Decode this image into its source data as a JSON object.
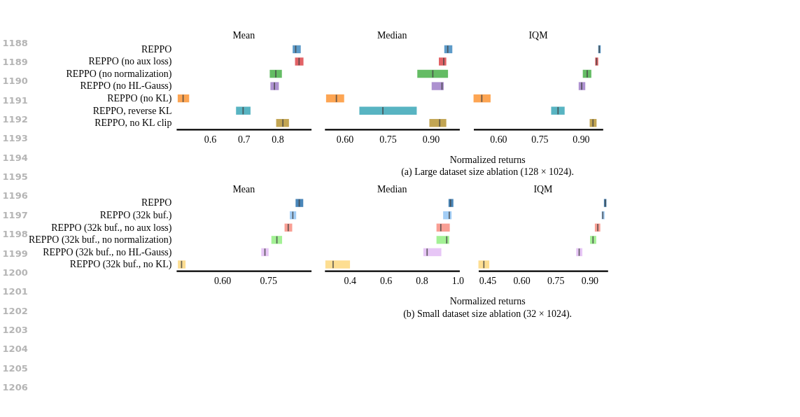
{
  "chart_data": [
    {
      "type": "box",
      "orientation": "horizontal",
      "title": "Mean",
      "categories": [
        "REPPO",
        "REPPO (no aux loss)",
        "REPPO (no normalization)",
        "REPPO (no HL-Gauss)",
        "REPPO (no KL)",
        "REPPO, reverse KL",
        "REPPO, no KL clip"
      ],
      "xlim": [
        0.5,
        0.9
      ],
      "xticks": [
        0.6,
        0.7,
        0.8
      ],
      "annotations": [
        "1188",
        "1189",
        "1190",
        "1191",
        "1192",
        "1193",
        "1194",
        "1195",
        "1196",
        "1197"
      ],
      "colors": [
        "#5496c6",
        "#e05a5e",
        "#5cb85c",
        "#a98bcd",
        "#fda04a",
        "#4fb0bf",
        "#bfa04a"
      ],
      "boxes": [
        {
          "low": 0.845,
          "q1": 0.845,
          "median": 0.854,
          "q3": 0.869,
          "high": 0.869
        },
        {
          "low": 0.852,
          "q1": 0.852,
          "median": 0.864,
          "q3": 0.877,
          "high": 0.877
        },
        {
          "low": 0.777,
          "q1": 0.777,
          "median": 0.795,
          "q3": 0.813,
          "high": 0.813
        },
        {
          "low": 0.779,
          "q1": 0.779,
          "median": 0.791,
          "q3": 0.804,
          "high": 0.804
        },
        {
          "low": 0.504,
          "q1": 0.504,
          "median": 0.52,
          "q3": 0.538,
          "high": 0.538
        },
        {
          "low": 0.677,
          "q1": 0.677,
          "median": 0.698,
          "q3": 0.72,
          "high": 0.72
        },
        {
          "low": 0.796,
          "q1": 0.796,
          "median": 0.816,
          "q3": 0.834,
          "high": 0.834
        }
      ]
    },
    {
      "type": "box",
      "orientation": "horizontal",
      "title": "Median",
      "xlabel": "Normalized returns",
      "annotations": [
        "(a) Large dataset size ablation (128 × 1024)."
      ],
      "tick_labels": "x",
      "categories": [
        null,
        null,
        null,
        null,
        null,
        null,
        null
      ],
      "xlim": [
        0.53,
        1.0
      ],
      "xticks": [
        {
          "value": 0.6,
          "label": "0.60"
        },
        0.75,
        {
          "value": 0.9,
          "label": "0.90"
        }
      ],
      "colors": [
        "#5496c6",
        "#e05a5e",
        "#5cb85c",
        "#a98bcd",
        "#fda04a",
        "#4fb0bf",
        "#bfa04a"
      ],
      "boxes": [
        {
          "low": 0.947,
          "q1": 0.947,
          "median": 0.959,
          "q3": 0.975,
          "high": 0.975
        },
        {
          "low": 0.928,
          "q1": 0.928,
          "median": 0.945,
          "q3": 0.954,
          "high": 0.954
        },
        {
          "low": 0.853,
          "q1": 0.853,
          "median": 0.907,
          "q3": 0.96,
          "high": 0.96
        },
        {
          "low": 0.903,
          "q1": 0.903,
          "median": 0.939,
          "q3": 0.945,
          "high": 0.945
        },
        {
          "low": 0.535,
          "q1": 0.535,
          "median": 0.571,
          "q3": 0.598,
          "high": 0.598
        },
        {
          "low": 0.651,
          "q1": 0.651,
          "median": 0.733,
          "q3": 0.851,
          "high": 0.851
        },
        {
          "low": 0.895,
          "q1": 0.895,
          "median": 0.931,
          "q3": 0.954,
          "high": 0.954
        }
      ]
    },
    {
      "type": "box",
      "orientation": "horizontal",
      "title": "IQM",
      "tick_labels": "x",
      "categories": [
        null,
        null,
        null,
        null,
        null,
        null,
        null
      ],
      "xlim": [
        0.51,
        0.98
      ],
      "xticks": [
        {
          "value": 0.6,
          "label": "0.60"
        },
        0.75,
        {
          "value": 0.9,
          "label": "0.90"
        }
      ],
      "colors": [
        "#5496c6",
        "#e05a5e",
        "#5cb85c",
        "#a98bcd",
        "#fda04a",
        "#4fb0bf",
        "#bfa04a"
      ],
      "boxes": [
        {
          "low": 0.963,
          "q1": 0.963,
          "median": 0.967,
          "q3": 0.972,
          "high": 0.972
        },
        {
          "low": 0.952,
          "q1": 0.952,
          "median": 0.957,
          "q3": 0.963,
          "high": 0.963
        },
        {
          "low": 0.907,
          "q1": 0.907,
          "median": 0.923,
          "q3": 0.938,
          "high": 0.938
        },
        {
          "low": 0.892,
          "q1": 0.892,
          "median": 0.903,
          "q3": 0.916,
          "high": 0.916
        },
        {
          "low": 0.51,
          "q1": 0.51,
          "median": 0.54,
          "q3": 0.572,
          "high": 0.572
        },
        {
          "low": 0.792,
          "q1": 0.792,
          "median": 0.817,
          "q3": 0.841,
          "high": 0.841
        },
        {
          "low": 0.932,
          "q1": 0.932,
          "median": 0.944,
          "q3": 0.957,
          "high": 0.957
        }
      ]
    },
    {
      "type": "box",
      "orientation": "horizontal",
      "title": "Mean",
      "categories": [
        "REPPO",
        "REPPO (32k buf.)",
        "REPPO (32k buf., no aux loss)",
        "REPPO (32k buf., no normalization)",
        "REPPO (32k buf., no HL-Gauss)",
        "REPPO (32k buf., no KL)"
      ],
      "xlim": [
        0.45,
        0.89
      ],
      "xticks": [
        {
          "value": 0.6,
          "label": "0.60"
        },
        0.75
      ],
      "annotations": [
        "1198",
        "1199",
        "1200",
        "1201",
        "1202",
        "1203",
        "1204",
        "1205",
        "1206"
      ],
      "colors": [
        "#3f7fb5",
        "#9ecbf5",
        "#f99a8e",
        "#9ef08f",
        "#e6c3f5",
        "#fddc8c"
      ],
      "boxes": [
        {
          "low": 0.839,
          "q1": 0.839,
          "median": 0.851,
          "q3": 0.864,
          "high": 0.864
        },
        {
          "low": 0.82,
          "q1": 0.82,
          "median": 0.83,
          "q3": 0.841,
          "high": 0.841
        },
        {
          "low": 0.803,
          "q1": 0.803,
          "median": 0.815,
          "q3": 0.828,
          "high": 0.828
        },
        {
          "low": 0.76,
          "q1": 0.76,
          "median": 0.778,
          "q3": 0.795,
          "high": 0.795
        },
        {
          "low": 0.727,
          "q1": 0.727,
          "median": 0.739,
          "q3": 0.751,
          "high": 0.751
        },
        {
          "low": 0.455,
          "q1": 0.455,
          "median": 0.467,
          "q3": 0.48,
          "high": 0.48
        }
      ]
    },
    {
      "type": "box",
      "orientation": "horizontal",
      "title": "Median",
      "xlabel": "Normalized returns",
      "annotations": [
        "(b) Small dataset size ablation (32 × 1024)."
      ],
      "tick_labels": "x",
      "categories": [
        null,
        null,
        null,
        null,
        null,
        null
      ],
      "xlim": [
        0.26,
        1.01
      ],
      "xticks": [
        0.4,
        0.6,
        0.8,
        {
          "value": 1.0,
          "label": "1.0"
        }
      ],
      "colors": [
        "#3f7fb5",
        "#9ecbf5",
        "#f99a8e",
        "#9ef08f",
        "#e6c3f5",
        "#fddc8c"
      ],
      "boxes": [
        {
          "low": 0.949,
          "q1": 0.949,
          "median": 0.96,
          "q3": 0.976,
          "high": 0.976
        },
        {
          "low": 0.919,
          "q1": 0.919,
          "median": 0.953,
          "q3": 0.966,
          "high": 0.966
        },
        {
          "low": 0.882,
          "q1": 0.882,
          "median": 0.906,
          "q3": 0.956,
          "high": 0.956
        },
        {
          "low": 0.882,
          "q1": 0.882,
          "median": 0.939,
          "q3": 0.953,
          "high": 0.953
        },
        {
          "low": 0.809,
          "q1": 0.809,
          "median": 0.83,
          "q3": 0.909,
          "high": 0.909
        },
        {
          "low": 0.264,
          "q1": 0.264,
          "median": 0.307,
          "q3": 0.401,
          "high": 0.401
        }
      ]
    },
    {
      "type": "box",
      "orientation": "horizontal",
      "title": "IQM",
      "tick_labels": "x",
      "categories": [
        null,
        null,
        null,
        null,
        null,
        null
      ],
      "xlim": [
        0.41,
        0.98
      ],
      "xticks": [
        0.45,
        {
          "value": 0.6,
          "label": "0.60"
        },
        0.75,
        {
          "value": 0.9,
          "label": "0.90"
        }
      ],
      "colors": [
        "#3f7fb5",
        "#9ecbf5",
        "#f99a8e",
        "#9ef08f",
        "#e6c3f5",
        "#fddc8c"
      ],
      "boxes": [
        {
          "low": 0.963,
          "q1": 0.963,
          "median": 0.969,
          "q3": 0.974,
          "high": 0.974
        },
        {
          "low": 0.953,
          "q1": 0.953,
          "median": 0.958,
          "q3": 0.966,
          "high": 0.966
        },
        {
          "low": 0.923,
          "q1": 0.923,
          "median": 0.936,
          "q3": 0.947,
          "high": 0.947
        },
        {
          "low": 0.902,
          "q1": 0.902,
          "median": 0.915,
          "q3": 0.929,
          "high": 0.929
        },
        {
          "low": 0.841,
          "q1": 0.841,
          "median": 0.854,
          "q3": 0.868,
          "high": 0.868
        },
        {
          "low": 0.41,
          "q1": 0.41,
          "median": 0.434,
          "q3": 0.458,
          "high": 0.458
        }
      ]
    }
  ]
}
